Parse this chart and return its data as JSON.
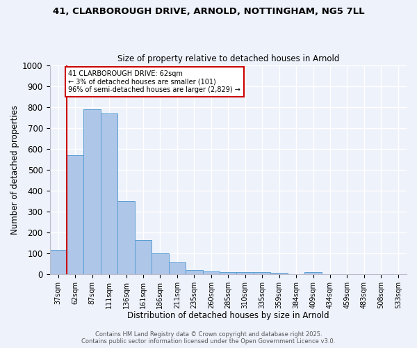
{
  "title_line1": "41, CLARBOROUGH DRIVE, ARNOLD, NOTTINGHAM, NG5 7LL",
  "title_line2": "Size of property relative to detached houses in Arnold",
  "xlabel": "Distribution of detached houses by size in Arnold",
  "ylabel": "Number of detached properties",
  "categories": [
    "37sqm",
    "62sqm",
    "87sqm",
    "111sqm",
    "136sqm",
    "161sqm",
    "186sqm",
    "211sqm",
    "235sqm",
    "260sqm",
    "285sqm",
    "310sqm",
    "335sqm",
    "359sqm",
    "384sqm",
    "409sqm",
    "434sqm",
    "459sqm",
    "483sqm",
    "508sqm",
    "533sqm"
  ],
  "values": [
    115,
    570,
    790,
    770,
    350,
    162,
    100,
    55,
    18,
    12,
    8,
    10,
    8,
    5,
    0,
    10,
    0,
    0,
    0,
    0,
    0
  ],
  "bar_color": "#aec6e8",
  "bar_edge_color": "#5a9fd4",
  "marker_label": "41 CLARBOROUGH DRIVE: 62sqm\n← 3% of detached houses are smaller (101)\n96% of semi-detached houses are larger (2,829) →",
  "annotation_box_edge": "#cc0000",
  "red_line_bin": 1,
  "ylim": [
    0,
    1000
  ],
  "yticks": [
    0,
    100,
    200,
    300,
    400,
    500,
    600,
    700,
    800,
    900,
    1000
  ],
  "bg_color": "#eef2fb",
  "grid_color": "#ffffff",
  "footer_line1": "Contains HM Land Registry data © Crown copyright and database right 2025.",
  "footer_line2": "Contains public sector information licensed under the Open Government Licence v3.0."
}
